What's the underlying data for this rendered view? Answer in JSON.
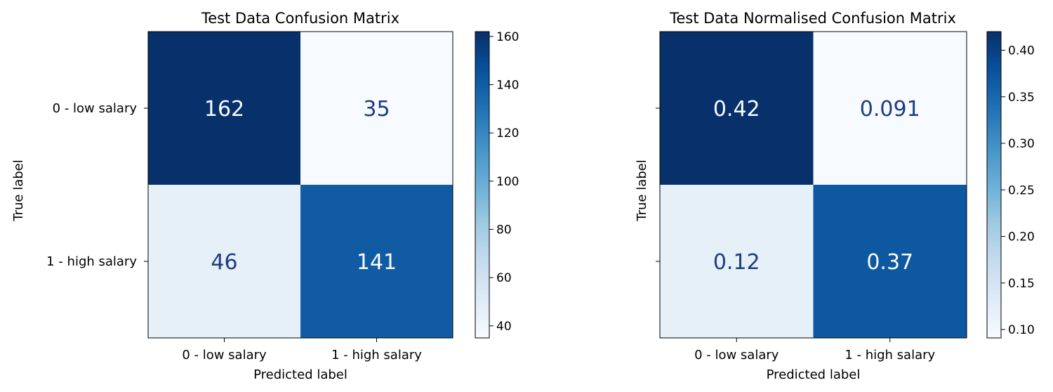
{
  "chart_data": [
    {
      "type": "heatmap",
      "title": "Test Data Confusion Matrix",
      "xlabel": "Predicted label",
      "ylabel": "True label",
      "x_categories": [
        "0 - low salary",
        "1 - high salary"
      ],
      "y_categories": [
        "0 - low salary",
        "1 - high salary"
      ],
      "values": [
        [
          162,
          35
        ],
        [
          46,
          141
        ]
      ],
      "cell_labels": [
        [
          "162",
          "35"
        ],
        [
          "46",
          "141"
        ]
      ],
      "colorbar": {
        "range": [
          35,
          162
        ],
        "ticks": [
          40,
          60,
          80,
          100,
          120,
          140,
          160
        ],
        "tick_labels": [
          "40",
          "60",
          "80",
          "100",
          "120",
          "140",
          "160"
        ]
      },
      "colormap": "Blues",
      "show_y_tick_labels": true
    },
    {
      "type": "heatmap",
      "title": "Test Data Normalised Confusion Matrix",
      "xlabel": "Predicted label",
      "ylabel": "True label",
      "x_categories": [
        "0 - low salary",
        "1 - high salary"
      ],
      "y_categories": [
        "",
        ""
      ],
      "values": [
        [
          0.42,
          0.091
        ],
        [
          0.12,
          0.37
        ]
      ],
      "cell_labels": [
        [
          "0.42",
          "0.091"
        ],
        [
          "0.12",
          "0.37"
        ]
      ],
      "colorbar": {
        "range": [
          0.091,
          0.42
        ],
        "ticks": [
          0.1,
          0.15,
          0.2,
          0.25,
          0.3,
          0.35,
          0.4
        ],
        "tick_labels": [
          "0.10",
          "0.15",
          "0.20",
          "0.25",
          "0.30",
          "0.35",
          "0.40"
        ]
      },
      "colormap": "Blues",
      "show_y_tick_labels": false
    }
  ]
}
